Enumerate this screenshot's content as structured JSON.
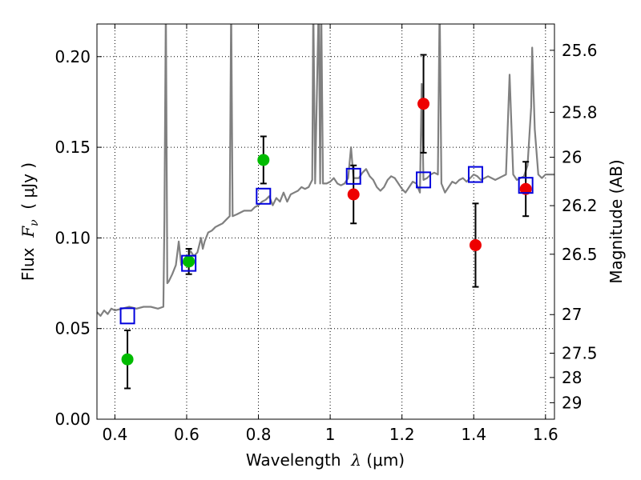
{
  "chart_data": {
    "type": "scatter",
    "xlabel": {
      "prefix": "Wavelength  ",
      "symbol": "λ",
      "unit": " (μm)"
    },
    "ylabel": {
      "prefix": "Flux  ",
      "symbol": "F",
      "subscript": "ν",
      "unit": "  ( μJy )"
    },
    "y2label": "Magnitude (AB)",
    "xlim": [
      0.35,
      1.625
    ],
    "ylim": [
      0.0,
      0.218
    ],
    "grid": true,
    "xticks": [
      {
        "value": 0.4,
        "label": "0.4"
      },
      {
        "value": 0.6,
        "label": "0.6"
      },
      {
        "value": 0.8,
        "label": "0.8"
      },
      {
        "value": 1.0,
        "label": "1"
      },
      {
        "value": 1.2,
        "label": "1.2"
      },
      {
        "value": 1.4,
        "label": "1.4"
      },
      {
        "value": 1.6,
        "label": "1.6"
      }
    ],
    "yticks": [
      {
        "value": 0.0,
        "label": "0.00"
      },
      {
        "value": 0.05,
        "label": "0.05"
      },
      {
        "value": 0.1,
        "label": "0.10"
      },
      {
        "value": 0.15,
        "label": "0.15"
      },
      {
        "value": 0.2,
        "label": "0.20"
      }
    ],
    "y2ticks": [
      {
        "flux": 0.2035,
        "label": "25.6"
      },
      {
        "flux": 0.1693,
        "label": "25.8"
      },
      {
        "flux": 0.1445,
        "label": "26"
      },
      {
        "flux": 0.1178,
        "label": "26.2"
      },
      {
        "flux": 0.091,
        "label": "26.5"
      },
      {
        "flux": 0.0577,
        "label": "27"
      },
      {
        "flux": 0.0364,
        "label": "27.5"
      },
      {
        "flux": 0.023,
        "label": "28"
      },
      {
        "flux": 0.0091,
        "label": "29"
      }
    ],
    "series": [
      {
        "marker": "circle",
        "color": "#00bb00",
        "points": [
          {
            "x": 0.435,
            "y": 0.033,
            "err": 0.016
          },
          {
            "x": 0.606,
            "y": 0.087,
            "err": 0.007
          },
          {
            "x": 0.814,
            "y": 0.143,
            "err": 0.013
          }
        ]
      },
      {
        "marker": "circle",
        "color": "#ee0000",
        "points": [
          {
            "x": 1.065,
            "y": 0.124,
            "err": 0.016
          },
          {
            "x": 1.26,
            "y": 0.174,
            "err": 0.027
          },
          {
            "x": 1.405,
            "y": 0.096,
            "err": 0.023
          },
          {
            "x": 1.545,
            "y": 0.127,
            "err": 0.015
          }
        ]
      },
      {
        "marker": "open-square",
        "color": "#0000dd",
        "points": [
          {
            "x": 0.435,
            "y": 0.057
          },
          {
            "x": 0.606,
            "y": 0.086
          },
          {
            "x": 0.814,
            "y": 0.123
          },
          {
            "x": 1.065,
            "y": 0.134
          },
          {
            "x": 1.26,
            "y": 0.132
          },
          {
            "x": 1.405,
            "y": 0.135
          },
          {
            "x": 1.545,
            "y": 0.129
          }
        ]
      }
    ],
    "spectrum": {
      "color": "#808080",
      "points": [
        [
          0.35,
          0.059
        ],
        [
          0.36,
          0.057
        ],
        [
          0.37,
          0.06
        ],
        [
          0.38,
          0.058
        ],
        [
          0.39,
          0.061
        ],
        [
          0.4,
          0.06
        ],
        [
          0.42,
          0.061
        ],
        [
          0.44,
          0.062
        ],
        [
          0.46,
          0.061
        ],
        [
          0.48,
          0.062
        ],
        [
          0.5,
          0.062
        ],
        [
          0.52,
          0.061
        ],
        [
          0.535,
          0.062
        ],
        [
          0.538,
          0.11
        ],
        [
          0.542,
          0.23
        ],
        [
          0.546,
          0.075
        ],
        [
          0.55,
          0.076
        ],
        [
          0.56,
          0.08
        ],
        [
          0.57,
          0.085
        ],
        [
          0.578,
          0.098
        ],
        [
          0.585,
          0.085
        ],
        [
          0.595,
          0.088
        ],
        [
          0.6,
          0.086
        ],
        [
          0.61,
          0.093
        ],
        [
          0.62,
          0.09
        ],
        [
          0.63,
          0.092
        ],
        [
          0.64,
          0.1
        ],
        [
          0.645,
          0.094
        ],
        [
          0.65,
          0.098
        ],
        [
          0.66,
          0.103
        ],
        [
          0.67,
          0.104
        ],
        [
          0.68,
          0.106
        ],
        [
          0.69,
          0.107
        ],
        [
          0.7,
          0.108
        ],
        [
          0.71,
          0.11
        ],
        [
          0.72,
          0.112
        ],
        [
          0.724,
          0.23
        ],
        [
          0.728,
          0.112
        ],
        [
          0.74,
          0.113
        ],
        [
          0.76,
          0.115
        ],
        [
          0.78,
          0.115
        ],
        [
          0.79,
          0.117
        ],
        [
          0.8,
          0.118
        ],
        [
          0.81,
          0.12
        ],
        [
          0.82,
          0.121
        ],
        [
          0.83,
          0.123
        ],
        [
          0.84,
          0.118
        ],
        [
          0.85,
          0.122
        ],
        [
          0.86,
          0.12
        ],
        [
          0.87,
          0.125
        ],
        [
          0.88,
          0.12
        ],
        [
          0.89,
          0.124
        ],
        [
          0.9,
          0.125
        ],
        [
          0.91,
          0.126
        ],
        [
          0.92,
          0.128
        ],
        [
          0.93,
          0.127
        ],
        [
          0.94,
          0.128
        ],
        [
          0.95,
          0.132
        ],
        [
          0.953,
          0.23
        ],
        [
          0.958,
          0.13
        ],
        [
          0.965,
          0.2
        ],
        [
          0.968,
          0.23
        ],
        [
          0.972,
          0.13
        ],
        [
          0.975,
          0.23
        ],
        [
          0.98,
          0.13
        ],
        [
          0.99,
          0.13
        ],
        [
          1.0,
          0.131
        ],
        [
          1.01,
          0.133
        ],
        [
          1.02,
          0.13
        ],
        [
          1.03,
          0.129
        ],
        [
          1.04,
          0.13
        ],
        [
          1.05,
          0.133
        ],
        [
          1.058,
          0.15
        ],
        [
          1.065,
          0.133
        ],
        [
          1.08,
          0.133
        ],
        [
          1.09,
          0.136
        ],
        [
          1.1,
          0.138
        ],
        [
          1.11,
          0.134
        ],
        [
          1.12,
          0.132
        ],
        [
          1.13,
          0.128
        ],
        [
          1.14,
          0.126
        ],
        [
          1.15,
          0.128
        ],
        [
          1.16,
          0.132
        ],
        [
          1.17,
          0.134
        ],
        [
          1.18,
          0.133
        ],
        [
          1.19,
          0.13
        ],
        [
          1.2,
          0.127
        ],
        [
          1.21,
          0.125
        ],
        [
          1.22,
          0.128
        ],
        [
          1.23,
          0.131
        ],
        [
          1.24,
          0.13
        ],
        [
          1.25,
          0.125
        ],
        [
          1.255,
          0.185
        ],
        [
          1.26,
          0.132
        ],
        [
          1.27,
          0.133
        ],
        [
          1.28,
          0.135
        ],
        [
          1.29,
          0.136
        ],
        [
          1.3,
          0.135
        ],
        [
          1.305,
          0.23
        ],
        [
          1.31,
          0.13
        ],
        [
          1.32,
          0.125
        ],
        [
          1.33,
          0.128
        ],
        [
          1.34,
          0.131
        ],
        [
          1.35,
          0.13
        ],
        [
          1.36,
          0.132
        ],
        [
          1.37,
          0.133
        ],
        [
          1.38,
          0.131
        ],
        [
          1.39,
          0.133
        ],
        [
          1.4,
          0.135
        ],
        [
          1.41,
          0.134
        ],
        [
          1.42,
          0.132
        ],
        [
          1.43,
          0.133
        ],
        [
          1.44,
          0.134
        ],
        [
          1.45,
          0.133
        ],
        [
          1.46,
          0.132
        ],
        [
          1.47,
          0.133
        ],
        [
          1.48,
          0.134
        ],
        [
          1.49,
          0.135
        ],
        [
          1.5,
          0.19
        ],
        [
          1.51,
          0.135
        ],
        [
          1.52,
          0.132
        ],
        [
          1.53,
          0.133
        ],
        [
          1.54,
          0.134
        ],
        [
          1.55,
          0.14
        ],
        [
          1.56,
          0.172
        ],
        [
          1.563,
          0.205
        ],
        [
          1.57,
          0.16
        ],
        [
          1.58,
          0.135
        ],
        [
          1.59,
          0.133
        ],
        [
          1.6,
          0.135
        ],
        [
          1.61,
          0.135
        ],
        [
          1.625,
          0.135
        ]
      ]
    }
  }
}
